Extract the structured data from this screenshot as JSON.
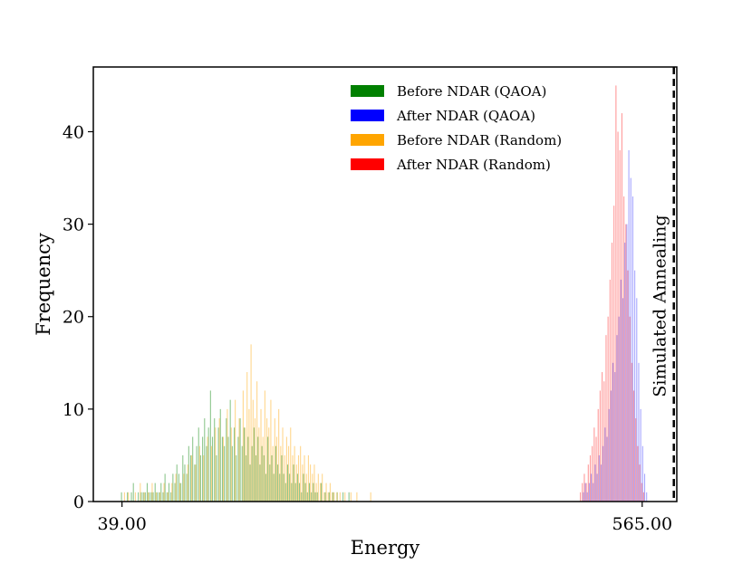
{
  "chart_data": {
    "type": "histogram",
    "title": "",
    "xlabel": "Energy",
    "ylabel": "Frequency",
    "xlim": [
      10,
      600
    ],
    "ylim": [
      0,
      47
    ],
    "x_ticks": [
      {
        "value": 39,
        "label": "39.00"
      },
      {
        "value": 565,
        "label": "565.00"
      }
    ],
    "y_ticks": [
      {
        "value": 0,
        "label": "0"
      },
      {
        "value": 10,
        "label": "10"
      },
      {
        "value": 20,
        "label": "20"
      },
      {
        "value": 30,
        "label": "30"
      },
      {
        "value": 40,
        "label": "40"
      }
    ],
    "bin_width": 1,
    "reference_line": {
      "label": "Simulated Annealing",
      "x": 597,
      "style": "dashed",
      "color": "#000000"
    },
    "series": [
      {
        "name": "Before NDAR (QAOA)",
        "color": "#008000",
        "opacity": 0.45,
        "bins": [
          [
            38,
            1
          ],
          [
            44,
            1
          ],
          [
            48,
            1
          ],
          [
            50,
            2
          ],
          [
            55,
            1
          ],
          [
            58,
            1
          ],
          [
            60,
            1
          ],
          [
            62,
            1
          ],
          [
            64,
            2
          ],
          [
            66,
            1
          ],
          [
            68,
            1
          ],
          [
            70,
            1
          ],
          [
            72,
            2
          ],
          [
            74,
            1
          ],
          [
            76,
            1
          ],
          [
            78,
            2
          ],
          [
            80,
            1
          ],
          [
            82,
            3
          ],
          [
            84,
            1
          ],
          [
            86,
            2
          ],
          [
            88,
            1
          ],
          [
            90,
            3
          ],
          [
            92,
            2
          ],
          [
            94,
            4
          ],
          [
            96,
            3
          ],
          [
            98,
            2
          ],
          [
            100,
            5
          ],
          [
            102,
            4
          ],
          [
            104,
            3
          ],
          [
            106,
            6
          ],
          [
            108,
            5
          ],
          [
            110,
            7
          ],
          [
            112,
            4
          ],
          [
            114,
            6
          ],
          [
            116,
            8
          ],
          [
            118,
            5
          ],
          [
            120,
            7
          ],
          [
            122,
            9
          ],
          [
            124,
            6
          ],
          [
            126,
            8
          ],
          [
            128,
            12
          ],
          [
            130,
            7
          ],
          [
            132,
            9
          ],
          [
            134,
            5
          ],
          [
            136,
            8
          ],
          [
            138,
            10
          ],
          [
            140,
            7
          ],
          [
            142,
            6
          ],
          [
            144,
            9
          ],
          [
            146,
            7
          ],
          [
            148,
            11
          ],
          [
            150,
            6
          ],
          [
            152,
            8
          ],
          [
            154,
            5
          ],
          [
            156,
            7
          ],
          [
            158,
            9
          ],
          [
            160,
            6
          ],
          [
            162,
            8
          ],
          [
            164,
            5
          ],
          [
            166,
            7
          ],
          [
            168,
            4
          ],
          [
            170,
            6
          ],
          [
            172,
            8
          ],
          [
            174,
            5
          ],
          [
            176,
            7
          ],
          [
            178,
            4
          ],
          [
            180,
            6
          ],
          [
            182,
            5
          ],
          [
            184,
            3
          ],
          [
            186,
            7
          ],
          [
            188,
            4
          ],
          [
            190,
            5
          ],
          [
            192,
            3
          ],
          [
            194,
            6
          ],
          [
            196,
            4
          ],
          [
            198,
            3
          ],
          [
            200,
            5
          ],
          [
            202,
            3
          ],
          [
            204,
            2
          ],
          [
            206,
            4
          ],
          [
            208,
            3
          ],
          [
            210,
            2
          ],
          [
            212,
            4
          ],
          [
            214,
            2
          ],
          [
            216,
            3
          ],
          [
            218,
            2
          ],
          [
            220,
            1
          ],
          [
            222,
            3
          ],
          [
            224,
            2
          ],
          [
            226,
            1
          ],
          [
            228,
            2
          ],
          [
            230,
            1
          ],
          [
            232,
            2
          ],
          [
            234,
            1
          ],
          [
            236,
            1
          ],
          [
            240,
            2
          ],
          [
            244,
            1
          ],
          [
            248,
            1
          ],
          [
            252,
            1
          ],
          [
            256,
            1
          ],
          [
            262,
            1
          ],
          [
            268,
            1
          ]
        ]
      },
      {
        "name": "After NDAR (QAOA)",
        "color": "#0000ff",
        "opacity": 0.35,
        "bins": [
          [
            505,
            1
          ],
          [
            507,
            2
          ],
          [
            509,
            1
          ],
          [
            511,
            2
          ],
          [
            513,
            3
          ],
          [
            515,
            2
          ],
          [
            517,
            4
          ],
          [
            519,
            3
          ],
          [
            521,
            5
          ],
          [
            523,
            4
          ],
          [
            525,
            6
          ],
          [
            527,
            8
          ],
          [
            529,
            7
          ],
          [
            531,
            10
          ],
          [
            533,
            12
          ],
          [
            535,
            15
          ],
          [
            537,
            14
          ],
          [
            539,
            18
          ],
          [
            541,
            20
          ],
          [
            543,
            24
          ],
          [
            545,
            22
          ],
          [
            547,
            28
          ],
          [
            549,
            30
          ],
          [
            551,
            38
          ],
          [
            553,
            35
          ],
          [
            555,
            33
          ],
          [
            557,
            25
          ],
          [
            559,
            22
          ],
          [
            561,
            15
          ],
          [
            563,
            10
          ],
          [
            565,
            6
          ],
          [
            567,
            3
          ],
          [
            569,
            1
          ]
        ]
      },
      {
        "name": "Before NDAR (Random)",
        "color": "#ffa500",
        "opacity": 0.45,
        "bins": [
          [
            41,
            1
          ],
          [
            45,
            1
          ],
          [
            52,
            1
          ],
          [
            57,
            2
          ],
          [
            61,
            1
          ],
          [
            65,
            1
          ],
          [
            69,
            2
          ],
          [
            73,
            1
          ],
          [
            77,
            1
          ],
          [
            81,
            2
          ],
          [
            85,
            1
          ],
          [
            89,
            2
          ],
          [
            93,
            3
          ],
          [
            97,
            2
          ],
          [
            101,
            3
          ],
          [
            105,
            4
          ],
          [
            109,
            5
          ],
          [
            113,
            4
          ],
          [
            117,
            6
          ],
          [
            121,
            5
          ],
          [
            125,
            7
          ],
          [
            129,
            6
          ],
          [
            133,
            8
          ],
          [
            137,
            9
          ],
          [
            141,
            7
          ],
          [
            145,
            10
          ],
          [
            149,
            8
          ],
          [
            153,
            11
          ],
          [
            157,
            9
          ],
          [
            161,
            12
          ],
          [
            163,
            8
          ],
          [
            165,
            14
          ],
          [
            167,
            10
          ],
          [
            169,
            17
          ],
          [
            171,
            11
          ],
          [
            173,
            9
          ],
          [
            175,
            13
          ],
          [
            177,
            8
          ],
          [
            179,
            10
          ],
          [
            181,
            7
          ],
          [
            183,
            12
          ],
          [
            185,
            9
          ],
          [
            187,
            8
          ],
          [
            189,
            11
          ],
          [
            191,
            6
          ],
          [
            193,
            9
          ],
          [
            195,
            7
          ],
          [
            197,
            10
          ],
          [
            199,
            6
          ],
          [
            201,
            8
          ],
          [
            203,
            5
          ],
          [
            205,
            7
          ],
          [
            207,
            6
          ],
          [
            209,
            8
          ],
          [
            211,
            5
          ],
          [
            213,
            6
          ],
          [
            215,
            4
          ],
          [
            217,
            5
          ],
          [
            219,
            6
          ],
          [
            221,
            4
          ],
          [
            223,
            5
          ],
          [
            225,
            3
          ],
          [
            227,
            5
          ],
          [
            229,
            4
          ],
          [
            231,
            3
          ],
          [
            233,
            4
          ],
          [
            235,
            2
          ],
          [
            237,
            3
          ],
          [
            239,
            2
          ],
          [
            241,
            3
          ],
          [
            243,
            1
          ],
          [
            245,
            2
          ],
          [
            247,
            1
          ],
          [
            249,
            2
          ],
          [
            251,
            1
          ],
          [
            253,
            1
          ],
          [
            256,
            1
          ],
          [
            259,
            1
          ],
          [
            264,
            1
          ],
          [
            270,
            1
          ],
          [
            276,
            1
          ],
          [
            290,
            1
          ]
        ]
      },
      {
        "name": "After NDAR (Random)",
        "color": "#ff0000",
        "opacity": 0.4,
        "bins": [
          [
            502,
            1
          ],
          [
            504,
            2
          ],
          [
            506,
            3
          ],
          [
            508,
            2
          ],
          [
            510,
            4
          ],
          [
            512,
            5
          ],
          [
            514,
            6
          ],
          [
            516,
            8
          ],
          [
            518,
            7
          ],
          [
            520,
            10
          ],
          [
            522,
            12
          ],
          [
            524,
            14
          ],
          [
            526,
            13
          ],
          [
            528,
            18
          ],
          [
            530,
            20
          ],
          [
            532,
            24
          ],
          [
            534,
            28
          ],
          [
            536,
            32
          ],
          [
            538,
            45
          ],
          [
            540,
            40
          ],
          [
            542,
            38
          ],
          [
            544,
            42
          ],
          [
            546,
            33
          ],
          [
            548,
            30
          ],
          [
            550,
            25
          ],
          [
            552,
            20
          ],
          [
            554,
            15
          ],
          [
            556,
            12
          ],
          [
            558,
            9
          ],
          [
            560,
            6
          ],
          [
            562,
            4
          ],
          [
            564,
            2
          ],
          [
            566,
            1
          ]
        ]
      }
    ],
    "legend": {
      "placement": "top-center",
      "entries": [
        {
          "label": "Before NDAR (QAOA)",
          "color": "#008000"
        },
        {
          "label": "After NDAR (QAOA)",
          "color": "#0000ff"
        },
        {
          "label": "Before NDAR (Random)",
          "color": "#ffa500"
        },
        {
          "label": "After NDAR (Random)",
          "color": "#ff0000"
        }
      ]
    }
  }
}
